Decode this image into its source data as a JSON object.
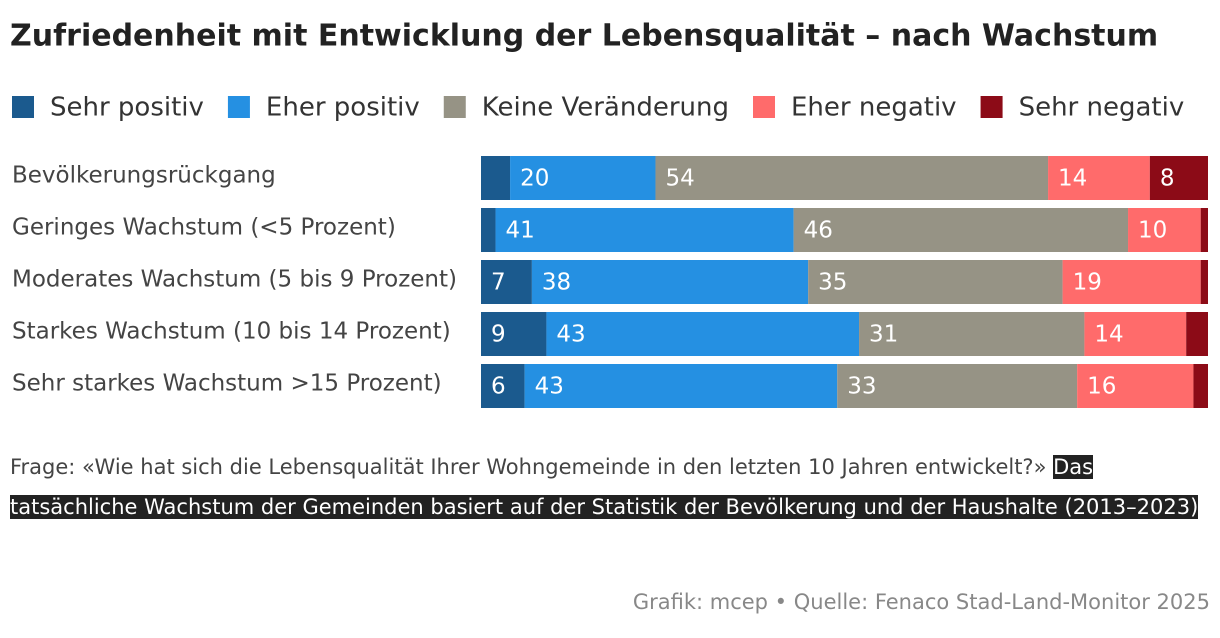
{
  "chart_data": {
    "type": "stacked-bar-horizontal",
    "title": "Zufriedenheit mit Entwicklung der Lebensqualität – nach Wachstum",
    "categories": [
      "Bevölkerungsrückgang",
      "Geringes Wachstum (<5 Prozent)",
      "Moderates Wachstum (5 bis 9 Prozent)",
      "Starkes Wachstum (10 bis 14 Prozent)",
      "Sehr starkes Wachstum >15 Prozent)"
    ],
    "series": [
      {
        "name": "Sehr positiv",
        "color": "#1b5a8e",
        "values": [
          4,
          2,
          7,
          9,
          6
        ]
      },
      {
        "name": "Eher positiv",
        "color": "#2590e2",
        "values": [
          20,
          41,
          38,
          43,
          43
        ]
      },
      {
        "name": "Keine Veränderung",
        "color": "#969385",
        "values": [
          54,
          46,
          35,
          31,
          33
        ]
      },
      {
        "name": "Eher negativ",
        "color": "#ff6b6b",
        "values": [
          14,
          10,
          19,
          14,
          16
        ]
      },
      {
        "name": "Sehr negativ",
        "color": "#8c0b17",
        "values": [
          8,
          1,
          1,
          3,
          2
        ]
      }
    ],
    "xlim": [
      0,
      100
    ],
    "note": [
      "Frage: «Wie hat sich die Lebensqualität Ihrer Wohngemeinde in den letzten 10 Jahren entwickelt?»",
      "Das tatsächliche Wachstum der Gemeinden basiert auf der Statistik der Bevölkerung und der Haushalte (2013–2023)"
    ],
    "source": "Grafik: mcep • Quelle: Fenaco Stad-Land-Monitor 2025"
  }
}
